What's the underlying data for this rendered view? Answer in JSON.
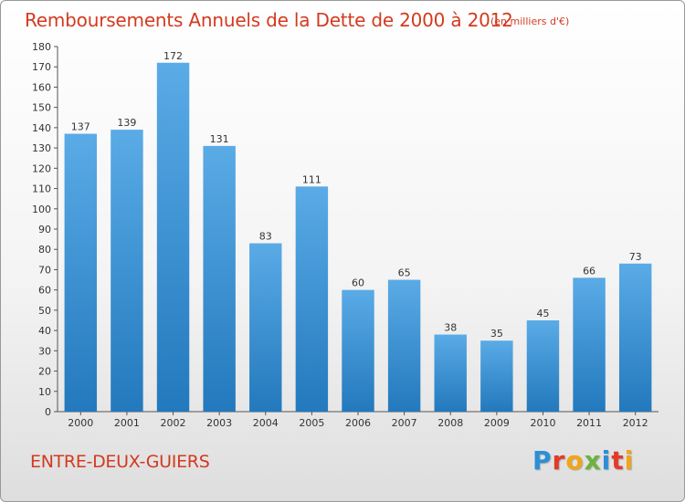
{
  "header": {
    "title": "Remboursements Annuels de la Dette de 2000 à 2012",
    "subtitle": "(en milliers d'€)"
  },
  "footer": {
    "commune": "ENTRE-DEUX-GUIERS",
    "logo_letters": [
      "P",
      "r",
      "o",
      "x",
      "i",
      "t",
      "i"
    ],
    "logo_colors": [
      "#2a8fd6",
      "#e23b2a",
      "#f3a417",
      "#6cb33e",
      "#2a8fd6",
      "#e23b2a",
      "#f3a417"
    ]
  },
  "colors": {
    "bar_top": "#5aabe6",
    "bar_bottom": "#2379bd",
    "text": "#d33a1f"
  },
  "chart_data": {
    "type": "bar",
    "categories": [
      "2000",
      "2001",
      "2002",
      "2003",
      "2004",
      "2005",
      "2006",
      "2007",
      "2008",
      "2009",
      "2010",
      "2011",
      "2012"
    ],
    "values": [
      137,
      139,
      172,
      131,
      83,
      111,
      60,
      65,
      38,
      35,
      45,
      66,
      73
    ],
    "ylim": [
      0,
      180
    ],
    "yticks": [
      0,
      10,
      20,
      30,
      40,
      50,
      60,
      70,
      80,
      90,
      100,
      110,
      120,
      130,
      140,
      150,
      160,
      170,
      180
    ],
    "grid": false,
    "data_labels": true
  }
}
